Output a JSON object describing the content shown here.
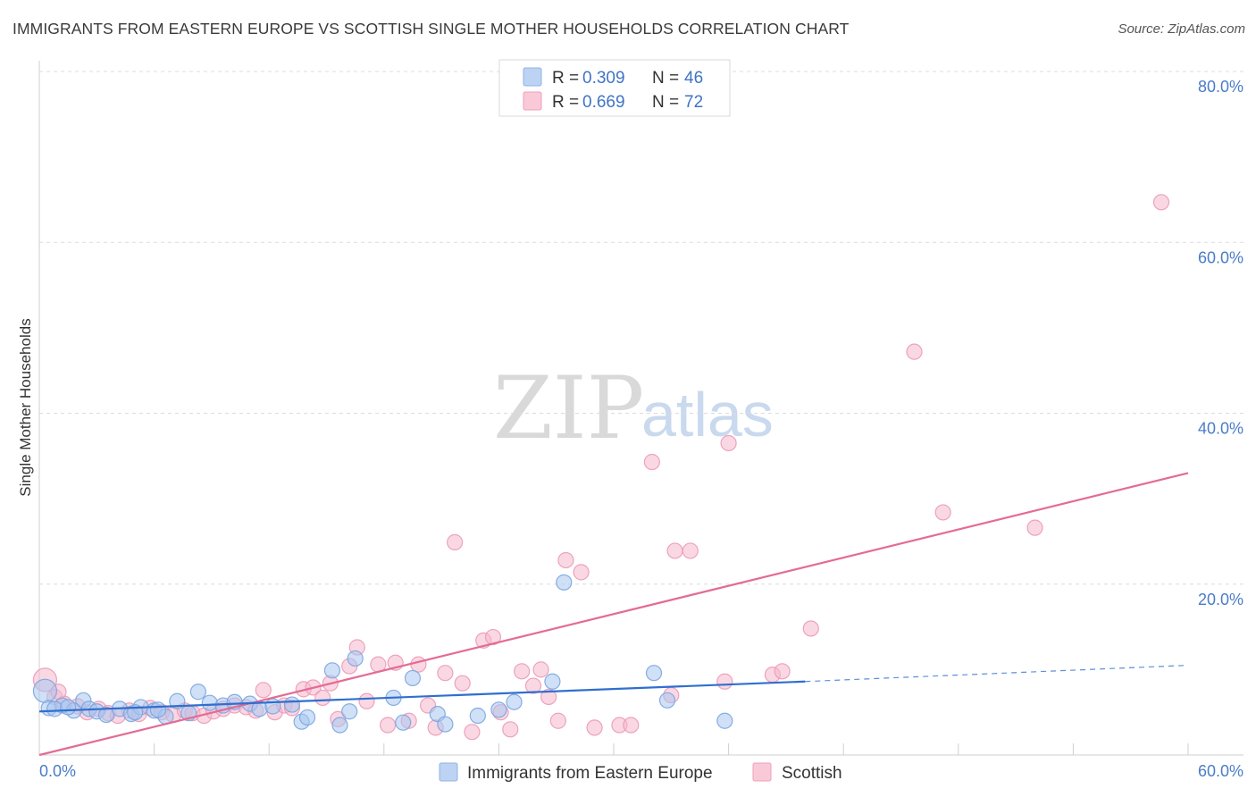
{
  "title": "IMMIGRANTS FROM EASTERN EUROPE VS SCOTTISH SINGLE MOTHER HOUSEHOLDS CORRELATION CHART",
  "source": "Source: ZipAtlas.com",
  "watermark": {
    "zip": "ZIP",
    "atlas": "atlas"
  },
  "colors": {
    "blue": "#4a86d8",
    "blue_fill": "#a8c6f0",
    "pink": "#e46b95",
    "pink_fill": "#f6b8cc",
    "tick": "#4a7cc7"
  },
  "legend": {
    "rows": [
      {
        "r_label": "R = ",
        "r_value": "0.309",
        "n_label": "N = ",
        "n_value": "46"
      },
      {
        "r_label": "R = ",
        "r_value": "0.669",
        "n_label": "N = ",
        "n_value": "72"
      }
    ]
  },
  "bottom_legend": [
    "Immigrants from Eastern Europe",
    "Scottish"
  ],
  "chart_data": {
    "type": "scatter",
    "title": "IMMIGRANTS FROM EASTERN EUROPE VS SCOTTISH SINGLE MOTHER HOUSEHOLDS CORRELATION CHART",
    "xlabel": "",
    "ylabel": "Single Mother Households",
    "xlim": [
      0,
      60
    ],
    "ylim": [
      0,
      80
    ],
    "x_tick_labels": [
      "0.0%",
      "60.0%"
    ],
    "y_tick_labels": [
      "20.0%",
      "40.0%",
      "60.0%",
      "80.0%"
    ],
    "y_ticks": [
      20,
      40,
      60,
      80
    ],
    "series": [
      {
        "name": "Immigrants from Eastern Europe",
        "color": "#4a86d8",
        "r": 0.309,
        "n": 46,
        "trend": {
          "x0": 0,
          "y0": 5.1,
          "x1": 40,
          "y1": 8.6,
          "dash_to_x": 60,
          "dash_to_y": 10.5
        },
        "points": [
          [
            0.3,
            7.5
          ],
          [
            0.5,
            5.5
          ],
          [
            1.2,
            5.8
          ],
          [
            1.8,
            5.2
          ],
          [
            2.3,
            6.4
          ],
          [
            2.6,
            5.4
          ],
          [
            3.0,
            5.1
          ],
          [
            3.5,
            4.7
          ],
          [
            4.2,
            5.4
          ],
          [
            4.8,
            4.8
          ],
          [
            5.3,
            5.6
          ],
          [
            6.0,
            5.2
          ],
          [
            6.6,
            4.5
          ],
          [
            7.2,
            6.3
          ],
          [
            7.8,
            4.9
          ],
          [
            8.3,
            7.4
          ],
          [
            8.9,
            6.1
          ],
          [
            9.6,
            5.8
          ],
          [
            10.2,
            6.2
          ],
          [
            11.0,
            6.0
          ],
          [
            11.5,
            5.4
          ],
          [
            12.2,
            5.7
          ],
          [
            13.2,
            5.9
          ],
          [
            13.7,
            3.9
          ],
          [
            14.0,
            4.4
          ],
          [
            15.3,
            9.9
          ],
          [
            15.7,
            3.5
          ],
          [
            16.2,
            5.1
          ],
          [
            16.5,
            11.3
          ],
          [
            18.5,
            6.7
          ],
          [
            19.0,
            3.8
          ],
          [
            19.5,
            9.0
          ],
          [
            20.8,
            4.8
          ],
          [
            21.2,
            3.6
          ],
          [
            22.9,
            4.6
          ],
          [
            24.0,
            5.3
          ],
          [
            24.8,
            6.2
          ],
          [
            26.8,
            8.6
          ],
          [
            27.4,
            20.2
          ],
          [
            32.1,
            9.6
          ],
          [
            32.8,
            6.4
          ],
          [
            35.8,
            4.0
          ],
          [
            0.8,
            5.4
          ],
          [
            1.5,
            5.6
          ],
          [
            5.0,
            5.0
          ],
          [
            6.2,
            5.3
          ]
        ]
      },
      {
        "name": "Scottish",
        "color": "#e46b95",
        "r": 0.669,
        "n": 72,
        "trend": {
          "x0": 0,
          "y0": 0.0,
          "x1": 60,
          "y1": 33.0
        },
        "points": [
          [
            0.3,
            8.8
          ],
          [
            0.8,
            6.8
          ],
          [
            1.3,
            6.0
          ],
          [
            2.0,
            5.7
          ],
          [
            2.5,
            5.0
          ],
          [
            3.1,
            5.4
          ],
          [
            3.6,
            4.9
          ],
          [
            4.1,
            4.6
          ],
          [
            4.7,
            5.2
          ],
          [
            5.2,
            4.8
          ],
          [
            5.8,
            5.5
          ],
          [
            6.4,
            5.0
          ],
          [
            7.0,
            4.7
          ],
          [
            7.6,
            5.2
          ],
          [
            8.0,
            4.9
          ],
          [
            8.6,
            4.6
          ],
          [
            9.1,
            5.1
          ],
          [
            9.6,
            5.4
          ],
          [
            10.2,
            5.8
          ],
          [
            10.8,
            5.6
          ],
          [
            11.3,
            5.2
          ],
          [
            11.7,
            7.6
          ],
          [
            12.3,
            5.0
          ],
          [
            12.8,
            5.8
          ],
          [
            13.2,
            5.5
          ],
          [
            13.8,
            7.7
          ],
          [
            14.3,
            7.9
          ],
          [
            14.8,
            6.7
          ],
          [
            15.2,
            8.4
          ],
          [
            15.6,
            4.2
          ],
          [
            16.2,
            10.4
          ],
          [
            16.6,
            12.6
          ],
          [
            17.1,
            6.3
          ],
          [
            17.7,
            10.6
          ],
          [
            18.2,
            3.5
          ],
          [
            18.6,
            10.8
          ],
          [
            19.3,
            4.0
          ],
          [
            19.8,
            10.6
          ],
          [
            20.3,
            5.8
          ],
          [
            20.7,
            3.2
          ],
          [
            21.2,
            9.6
          ],
          [
            21.7,
            24.9
          ],
          [
            22.1,
            8.4
          ],
          [
            22.6,
            2.7
          ],
          [
            23.2,
            13.4
          ],
          [
            23.7,
            13.8
          ],
          [
            24.1,
            5.0
          ],
          [
            24.6,
            3.0
          ],
          [
            25.2,
            9.8
          ],
          [
            25.8,
            8.1
          ],
          [
            26.2,
            10.0
          ],
          [
            26.6,
            6.8
          ],
          [
            27.1,
            4.0
          ],
          [
            27.5,
            22.8
          ],
          [
            28.3,
            21.4
          ],
          [
            29.0,
            3.2
          ],
          [
            30.3,
            3.5
          ],
          [
            30.9,
            3.5
          ],
          [
            32.0,
            34.3
          ],
          [
            33.0,
            7.0
          ],
          [
            33.2,
            23.9
          ],
          [
            34.0,
            23.9
          ],
          [
            35.8,
            8.6
          ],
          [
            36.0,
            36.5
          ],
          [
            38.3,
            9.4
          ],
          [
            38.8,
            9.8
          ],
          [
            40.3,
            14.8
          ],
          [
            45.7,
            47.2
          ],
          [
            47.2,
            28.4
          ],
          [
            52.0,
            26.6
          ],
          [
            58.6,
            64.7
          ],
          [
            1.0,
            7.4
          ]
        ]
      }
    ],
    "legend_position": "top-center",
    "grid": true
  }
}
